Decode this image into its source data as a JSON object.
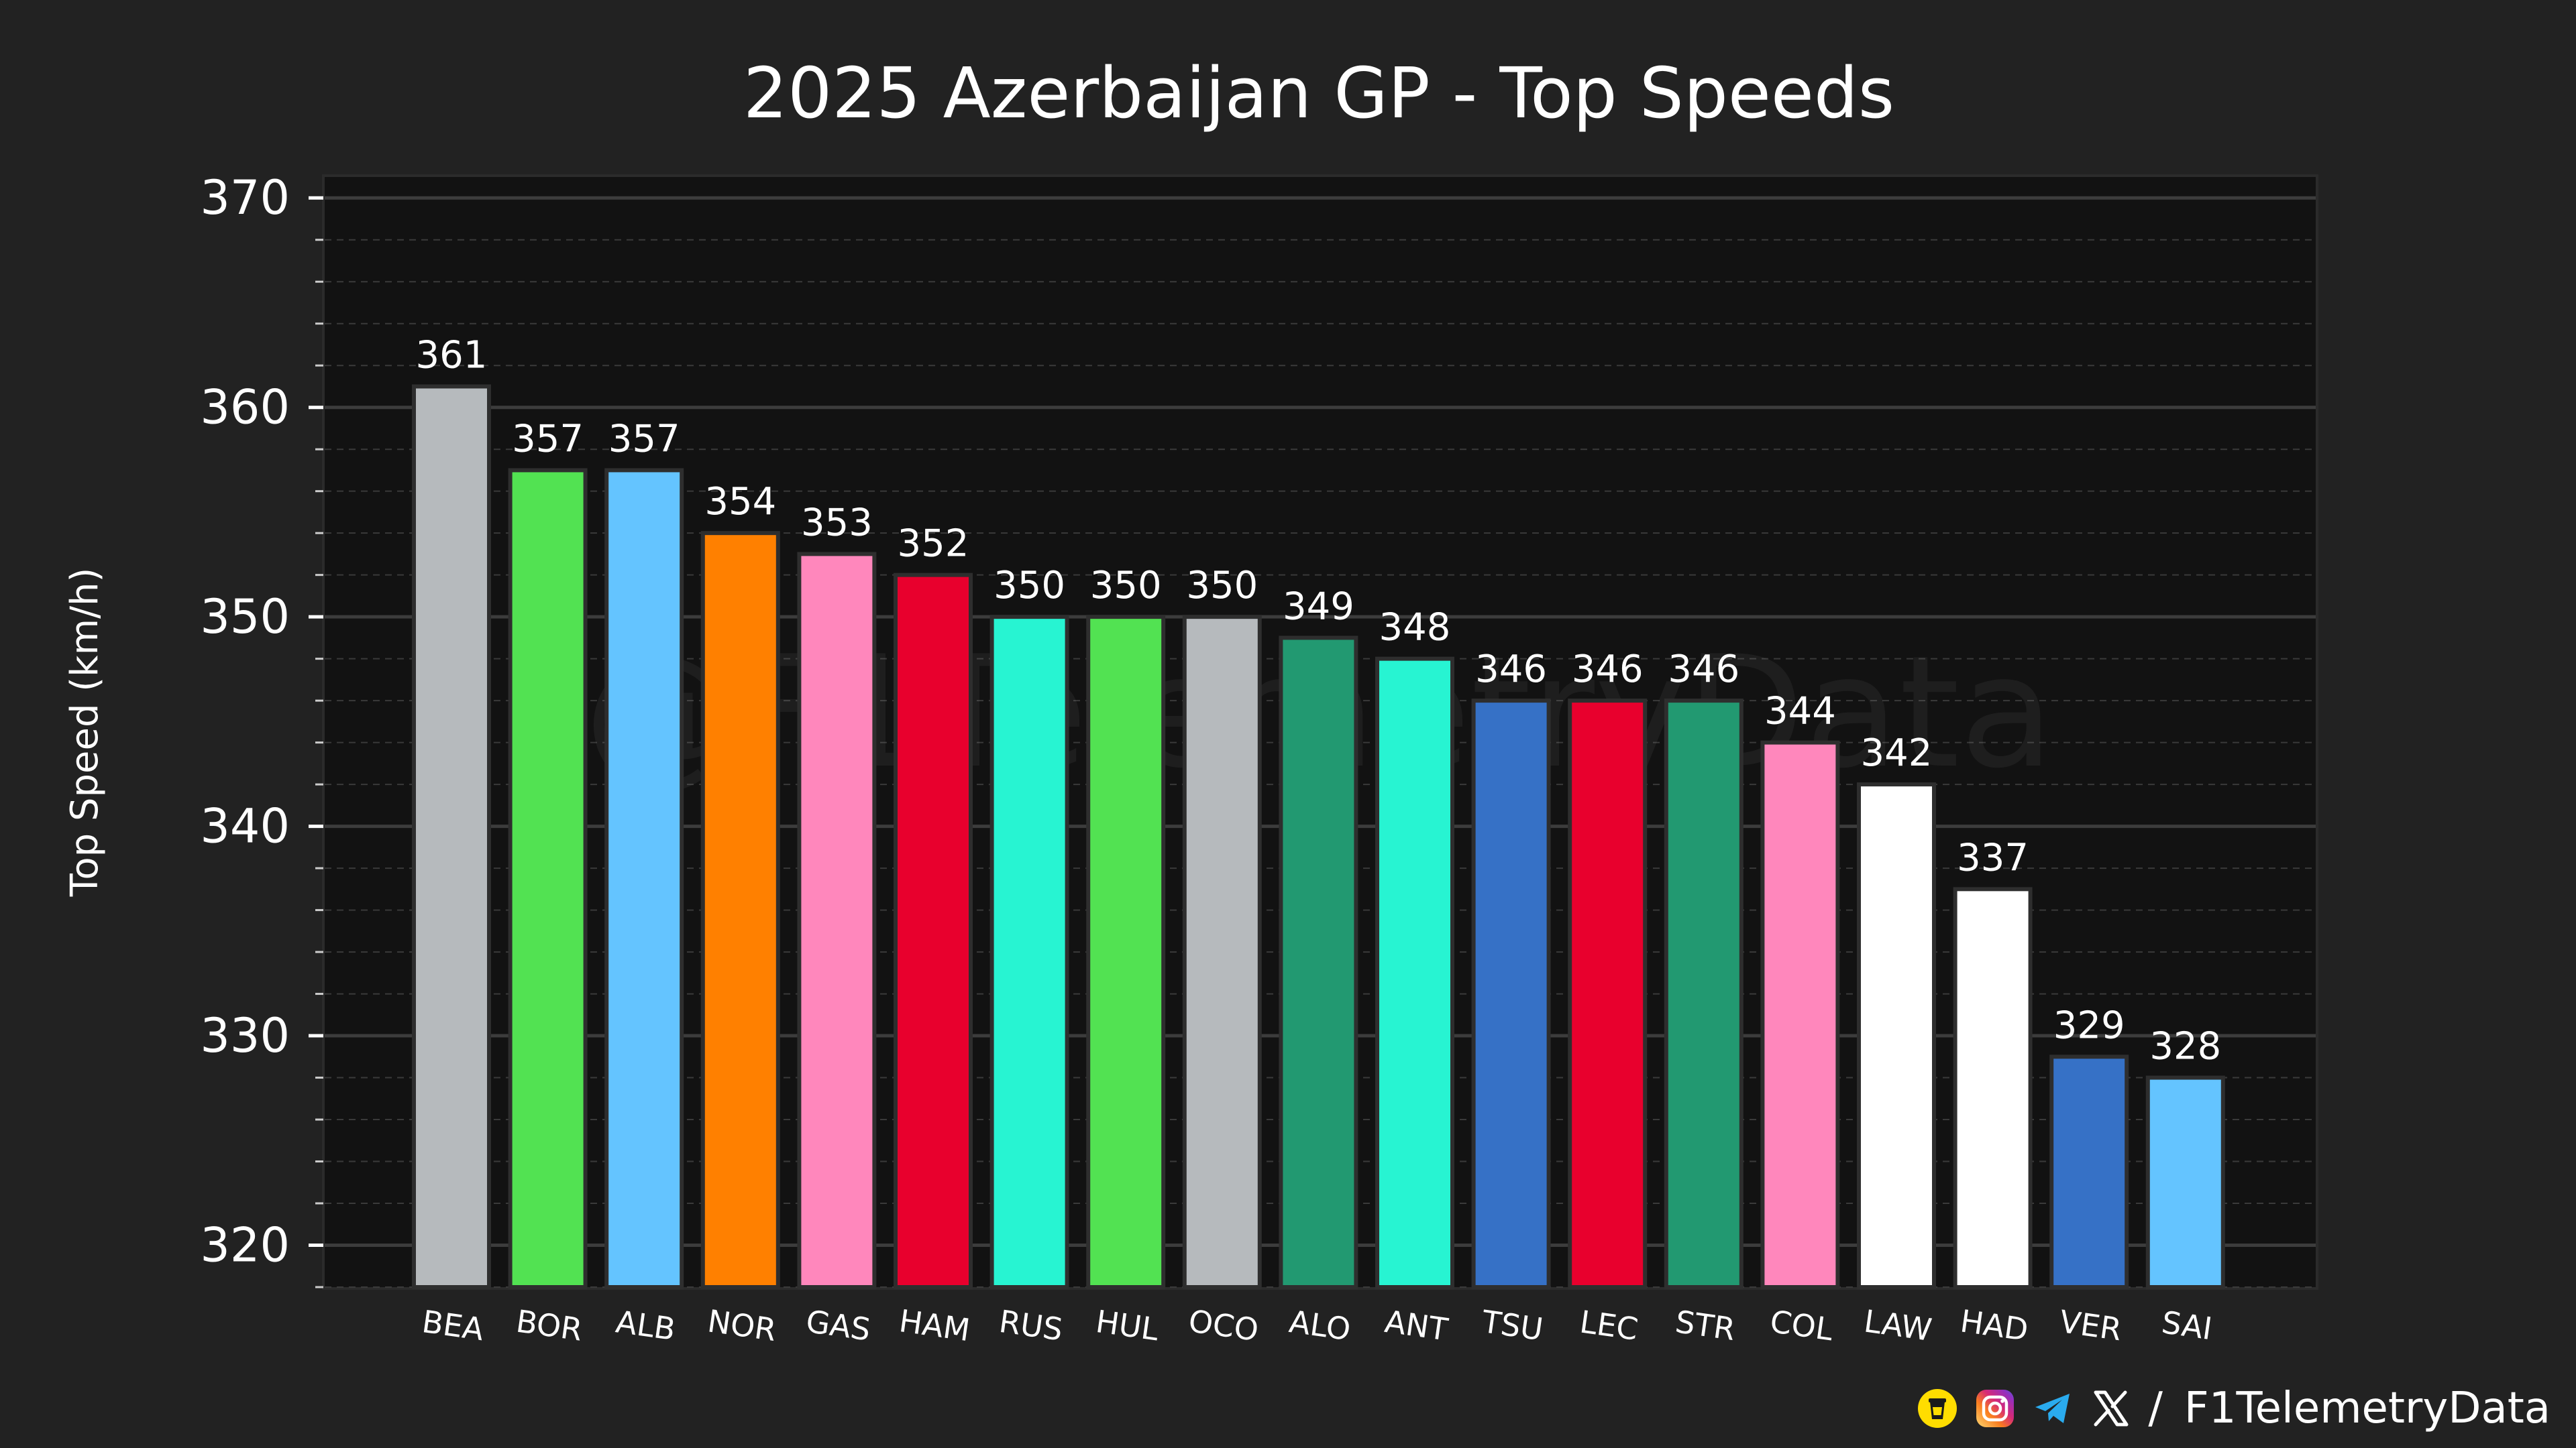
{
  "chart_data": {
    "type": "bar",
    "title": "2025 Azerbaijan GP - Top Speeds",
    "xlabel": "",
    "ylabel": "Top Speed (km/h)",
    "ylim": [
      318,
      371
    ],
    "yticks": [
      320,
      330,
      340,
      350,
      360,
      370
    ],
    "grid": true,
    "categories": [
      "BEA",
      "BOR",
      "ALB",
      "NOR",
      "GAS",
      "HAM",
      "RUS",
      "HUL",
      "OCO",
      "ALO",
      "ANT",
      "TSU",
      "LEC",
      "STR",
      "COL",
      "LAW",
      "HAD",
      "VER",
      "SAI"
    ],
    "values": [
      361,
      357,
      357,
      354,
      353,
      352,
      350,
      350,
      350,
      349,
      348,
      346,
      346,
      346,
      344,
      342,
      337,
      329,
      328
    ],
    "bar_labels": [
      "361",
      "357",
      "357",
      "354",
      "353",
      "352",
      "350",
      "350",
      "350",
      "349",
      "348",
      "346",
      "346",
      "346",
      "344",
      "342",
      "337",
      "329",
      "328"
    ],
    "colors": [
      "#B6BABD",
      "#52E252",
      "#64C4FF",
      "#FF8000",
      "#FF87BC",
      "#E8002D",
      "#27F4D2",
      "#52E252",
      "#B6BABD",
      "#229971",
      "#27F4D2",
      "#3671C6",
      "#E8002D",
      "#229971",
      "#FF87BC",
      "#FFFFFF",
      "#FFFFFF",
      "#3671C6",
      "#64C4FF"
    ]
  },
  "watermark": "@F1TelemetryData",
  "footer": {
    "separator": "/",
    "handle": "F1TelemetryData",
    "icons": [
      "coffee-cup-icon",
      "instagram-icon",
      "telegram-icon",
      "x-logo-icon"
    ]
  }
}
